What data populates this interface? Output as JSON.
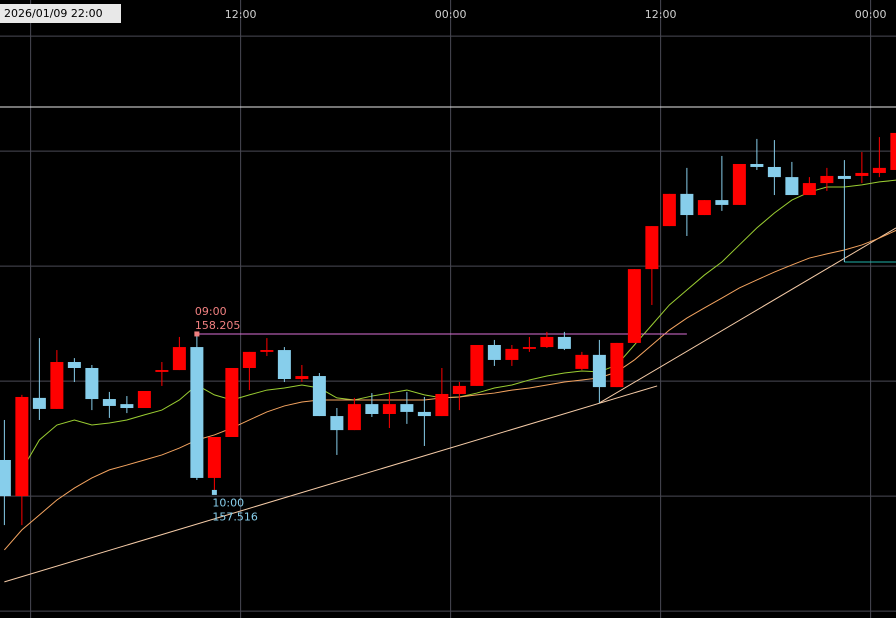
{
  "chart_data": {
    "type": "candlestick",
    "cursor_label": "2026/01/09 22:00",
    "xlim": [
      -0.25,
      50.95
    ],
    "ylim": [
      156.97,
      159.657
    ],
    "xticks": [
      {
        "value": 1.5,
        "label": null
      },
      {
        "value": 13.5,
        "label": "12:00"
      },
      {
        "value": 25.5,
        "label": "00:00"
      },
      {
        "value": 37.5,
        "label": "12:00"
      },
      {
        "value": 49.5,
        "label": "00:00"
      }
    ],
    "ygrid": [
      159.5,
      159.0,
      158.5,
      158.0,
      157.5,
      157.0
    ],
    "grid": true,
    "up_color": "#ff0000",
    "down_color": "#87ceeb",
    "candles": {
      "open": [
        157.657,
        157.5,
        157.927,
        157.879,
        158.083,
        158.057,
        157.922,
        157.9,
        157.883,
        158.04,
        158.048,
        158.148,
        157.579,
        157.757,
        158.057,
        158.127,
        158.135,
        158.009,
        158.022,
        157.848,
        157.787,
        157.9,
        157.857,
        157.9,
        157.866,
        157.848,
        157.944,
        157.979,
        158.157,
        158.092,
        158.14,
        158.148,
        158.192,
        158.053,
        158.114,
        157.974,
        158.166,
        158.487,
        158.674,
        158.814,
        158.722,
        158.787,
        158.766,
        158.944,
        158.931,
        158.887,
        158.809,
        158.861,
        158.892,
        158.892,
        158.905,
        158.918
      ],
      "high": [
        157.831,
        157.94,
        158.187,
        158.135,
        158.1,
        158.07,
        157.953,
        157.935,
        157.957,
        158.083,
        158.192,
        158.205,
        157.757,
        158.057,
        158.127,
        158.187,
        158.148,
        158.07,
        158.035,
        157.883,
        157.927,
        157.948,
        157.953,
        157.953,
        157.931,
        158.057,
        157.996,
        158.157,
        158.179,
        158.157,
        158.192,
        158.214,
        158.214,
        158.127,
        158.179,
        158.166,
        158.487,
        158.674,
        158.814,
        158.927,
        158.787,
        158.979,
        158.944,
        159.053,
        159.048,
        158.953,
        158.887,
        158.927,
        158.961,
        158.996,
        159.061,
        159.079
      ],
      "low": [
        157.374,
        157.374,
        157.831,
        157.879,
        157.996,
        157.874,
        157.84,
        157.861,
        157.883,
        157.979,
        158.048,
        157.57,
        157.516,
        157.757,
        157.961,
        158.109,
        157.996,
        157.996,
        157.848,
        157.679,
        157.787,
        157.844,
        157.796,
        157.814,
        157.718,
        157.848,
        157.874,
        157.979,
        158.066,
        158.066,
        158.127,
        158.144,
        158.135,
        158.048,
        157.905,
        157.974,
        158.166,
        158.331,
        158.674,
        158.631,
        158.722,
        158.74,
        158.766,
        158.918,
        158.809,
        158.809,
        158.809,
        158.827,
        158.518,
        158.861,
        158.887,
        158.918
      ],
      "close": [
        157.5,
        157.931,
        157.879,
        158.083,
        158.057,
        157.922,
        157.892,
        157.883,
        157.957,
        158.048,
        158.148,
        157.579,
        157.757,
        158.057,
        158.127,
        158.135,
        158.009,
        158.022,
        157.848,
        157.787,
        157.9,
        157.857,
        157.9,
        157.866,
        157.848,
        157.944,
        157.979,
        158.157,
        158.092,
        158.14,
        158.148,
        158.192,
        158.14,
        158.114,
        157.974,
        158.166,
        158.487,
        158.674,
        158.814,
        158.722,
        158.787,
        158.766,
        158.944,
        158.931,
        158.887,
        158.809,
        158.861,
        158.892,
        158.879,
        158.905,
        158.927,
        159.079
      ]
    },
    "series": [
      {
        "color": "#9acd32",
        "values": [
          null,
          157.614,
          157.744,
          157.809,
          157.831,
          157.809,
          157.818,
          157.831,
          157.853,
          157.874,
          157.918,
          157.983,
          157.94,
          157.918,
          157.94,
          157.961,
          157.97,
          157.983,
          157.97,
          157.927,
          157.918,
          157.935,
          157.948,
          157.961,
          157.94,
          157.927,
          157.931,
          157.948,
          157.97,
          157.983,
          158.005,
          158.022,
          158.035,
          158.044,
          158.04,
          158.07,
          158.157,
          158.244,
          158.331,
          158.396,
          158.461,
          158.518,
          158.592,
          158.666,
          158.731,
          158.787,
          158.822,
          158.844,
          158.844,
          158.853,
          158.866,
          158.874
        ]
      },
      {
        "color": "#f4a460",
        "values": [
          157.266,
          157.353,
          157.418,
          157.483,
          157.535,
          157.579,
          157.614,
          157.635,
          157.657,
          157.679,
          157.709,
          157.744,
          157.766,
          157.796,
          157.831,
          157.866,
          157.892,
          157.909,
          157.918,
          157.918,
          157.918,
          157.918,
          157.918,
          157.918,
          157.918,
          157.927,
          157.931,
          157.94,
          157.948,
          157.961,
          157.97,
          157.983,
          157.996,
          158.005,
          158.014,
          158.04,
          158.092,
          158.157,
          158.222,
          158.274,
          158.318,
          158.361,
          158.405,
          158.44,
          158.474,
          158.505,
          158.535,
          158.553,
          158.57,
          158.592,
          158.622,
          158.657
        ]
      }
    ],
    "trendlines": [
      {
        "color": "#f5cba7",
        "x": [
          0,
          37.3
        ],
        "values": [
          157.127,
          157.979
        ]
      },
      {
        "color": "#f5cba7",
        "x": [
          34,
          50.95
        ],
        "values": [
          157.905,
          158.666
        ]
      }
    ],
    "hlines": [
      {
        "color": "#e8e8e8",
        "value": 159.192,
        "from": -0.25,
        "to": 50.95
      },
      {
        "color": "#20b2aa",
        "value": 158.518,
        "from": 48,
        "to": 50.95
      }
    ],
    "high_label": {
      "time": "09:00",
      "value": 158.205,
      "color": "#f08080",
      "line_color": "#da70d6",
      "line_to": 39
    },
    "low_label": {
      "time": "10:00",
      "value": 157.516,
      "color": "#87ceeb"
    }
  }
}
